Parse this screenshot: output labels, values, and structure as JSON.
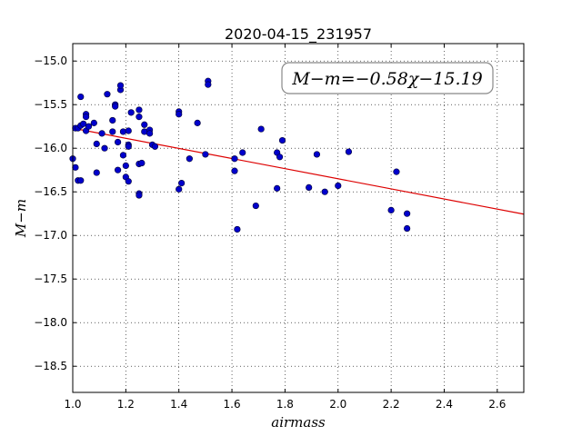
{
  "chart_data": {
    "type": "scatter",
    "title": "2020-04-15_231957",
    "xlabel": "airmass",
    "ylabel": "M−m",
    "xlim": [
      1.0,
      2.7
    ],
    "ylim": [
      -18.8,
      -14.8
    ],
    "y_inverted": true,
    "xticks": [
      1.0,
      1.2,
      1.4,
      1.6,
      1.8,
      2.0,
      2.2,
      2.4,
      2.6
    ],
    "xtick_labels": [
      "1.0",
      "1.2",
      "1.4",
      "1.6",
      "1.8",
      "2.0",
      "2.2",
      "2.4",
      "2.6"
    ],
    "yticks": [
      -15.0,
      -15.5,
      -16.0,
      -16.5,
      -17.0,
      -17.5,
      -18.0,
      -18.5
    ],
    "ytick_labels": [
      "−15.0",
      "−15.5",
      "−16.0",
      "−16.5",
      "−17.0",
      "−17.5",
      "−18.0",
      "−18.5"
    ],
    "grid": true,
    "point_color": "#0000cc",
    "line_color": "#dd0000",
    "annotation": "M−m=−0.58χ−15.19",
    "fit": {
      "slope": -0.58,
      "intercept": -15.19
    },
    "points": [
      [
        1.0,
        -16.12
      ],
      [
        1.01,
        -16.22
      ],
      [
        1.01,
        -15.77
      ],
      [
        1.02,
        -16.37
      ],
      [
        1.02,
        -15.77
      ],
      [
        1.03,
        -16.37
      ],
      [
        1.03,
        -15.41
      ],
      [
        1.03,
        -15.74
      ],
      [
        1.04,
        -15.72
      ],
      [
        1.05,
        -15.61
      ],
      [
        1.05,
        -15.64
      ],
      [
        1.05,
        -15.8
      ],
      [
        1.06,
        -15.75
      ],
      [
        1.08,
        -15.71
      ],
      [
        1.09,
        -15.95
      ],
      [
        1.09,
        -16.28
      ],
      [
        1.11,
        -15.83
      ],
      [
        1.12,
        -16.0
      ],
      [
        1.13,
        -15.38
      ],
      [
        1.15,
        -15.68
      ],
      [
        1.15,
        -15.81
      ],
      [
        1.16,
        -15.5
      ],
      [
        1.16,
        -15.52
      ],
      [
        1.17,
        -15.93
      ],
      [
        1.17,
        -16.25
      ],
      [
        1.18,
        -15.33
      ],
      [
        1.18,
        -15.28
      ],
      [
        1.19,
        -15.81
      ],
      [
        1.19,
        -16.08
      ],
      [
        1.2,
        -16.2
      ],
      [
        1.2,
        -16.33
      ],
      [
        1.21,
        -16.38
      ],
      [
        1.21,
        -15.8
      ],
      [
        1.21,
        -15.96
      ],
      [
        1.21,
        -15.98
      ],
      [
        1.22,
        -15.59
      ],
      [
        1.25,
        -15.56
      ],
      [
        1.25,
        -15.64
      ],
      [
        1.25,
        -16.18
      ],
      [
        1.25,
        -16.52
      ],
      [
        1.25,
        -16.54
      ],
      [
        1.26,
        -16.17
      ],
      [
        1.27,
        -15.73
      ],
      [
        1.27,
        -15.81
      ],
      [
        1.29,
        -15.79
      ],
      [
        1.29,
        -15.83
      ],
      [
        1.3,
        -15.96
      ],
      [
        1.31,
        -15.98
      ],
      [
        1.4,
        -15.58
      ],
      [
        1.4,
        -15.61
      ],
      [
        1.4,
        -16.47
      ],
      [
        1.41,
        -16.4
      ],
      [
        1.44,
        -16.12
      ],
      [
        1.47,
        -15.71
      ],
      [
        1.5,
        -16.07
      ],
      [
        1.51,
        -15.23
      ],
      [
        1.51,
        -15.27
      ],
      [
        1.61,
        -16.12
      ],
      [
        1.61,
        -16.26
      ],
      [
        1.62,
        -16.93
      ],
      [
        1.64,
        -16.05
      ],
      [
        1.69,
        -16.66
      ],
      [
        1.71,
        -15.78
      ],
      [
        1.77,
        -16.05
      ],
      [
        1.77,
        -16.46
      ],
      [
        1.78,
        -16.1
      ],
      [
        1.79,
        -15.91
      ],
      [
        1.89,
        -16.45
      ],
      [
        1.92,
        -16.07
      ],
      [
        1.95,
        -16.5
      ],
      [
        2.0,
        -16.43
      ],
      [
        2.04,
        -16.04
      ],
      [
        2.2,
        -16.71
      ],
      [
        2.22,
        -16.27
      ],
      [
        2.26,
        -16.75
      ],
      [
        2.26,
        -16.92
      ]
    ]
  }
}
